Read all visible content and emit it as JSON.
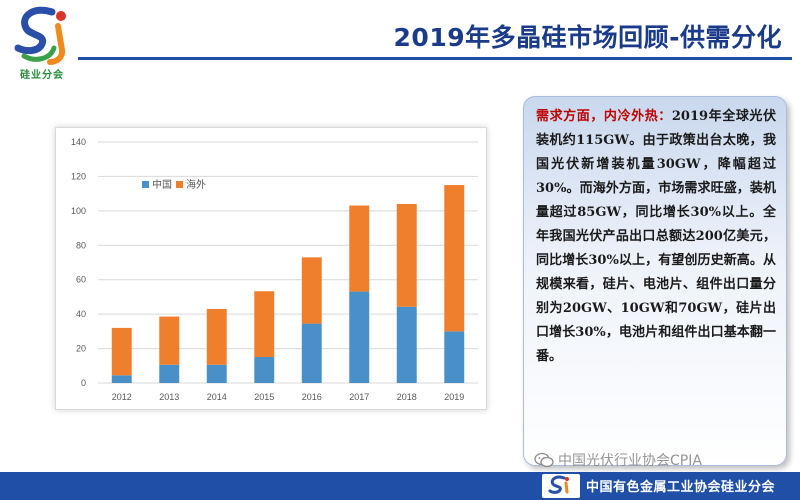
{
  "title": "2019年多晶硅市场回顾-供需分化",
  "logo": {
    "name": "硅业分会",
    "colors": {
      "blue": "#2a4fa8",
      "orange": "#f08a1c",
      "green": "#3aa04a",
      "red": "#d9342b"
    }
  },
  "panel": {
    "heading": "需求方面，内冷外热：",
    "body": "2019年全球光伏装机约115GW。由于政策出台太晚，我国光伏新增装机量30GW，降幅超过30%。而海外方面，市场需求旺盛，装机量超过85GW，同比增长30%以上。全年我国光伏产品出口总额达200亿美元，同比增长30%以上，有望创历史新高。从规模来看，硅片、电池片、组件出口量分别为20GW、10GW和70GW，硅片出口增长30%，电池片和组件出口基本翻一番。"
  },
  "footer": {
    "text": "中国有色金属工业协会硅业分会"
  },
  "watermark": {
    "text": "中国光伏行业协会CPIA"
  },
  "colors": {
    "title": "#1a3a8a",
    "footer_bar": "#1f4fa6",
    "highlight": "#c00000"
  },
  "chart_data": {
    "type": "bar",
    "stacked": true,
    "categories": [
      "2012",
      "2013",
      "2014",
      "2015",
      "2016",
      "2017",
      "2018",
      "2019"
    ],
    "series": [
      {
        "name": "中国",
        "values": [
          4.5,
          10.6,
          10.6,
          15.1,
          34.5,
          53.1,
          44.3,
          30
        ],
        "color": "#4a90c8"
      },
      {
        "name": "海外",
        "values": [
          27.5,
          28.0,
          32.4,
          38.2,
          38.5,
          50.0,
          59.7,
          85
        ],
        "color": "#ef7f2c"
      }
    ],
    "yticks": [
      0,
      20,
      40,
      60,
      80,
      100,
      120,
      140
    ],
    "ylim": [
      0,
      140
    ],
    "title": "",
    "xlabel": "",
    "ylabel": "",
    "legend": "top-left"
  }
}
